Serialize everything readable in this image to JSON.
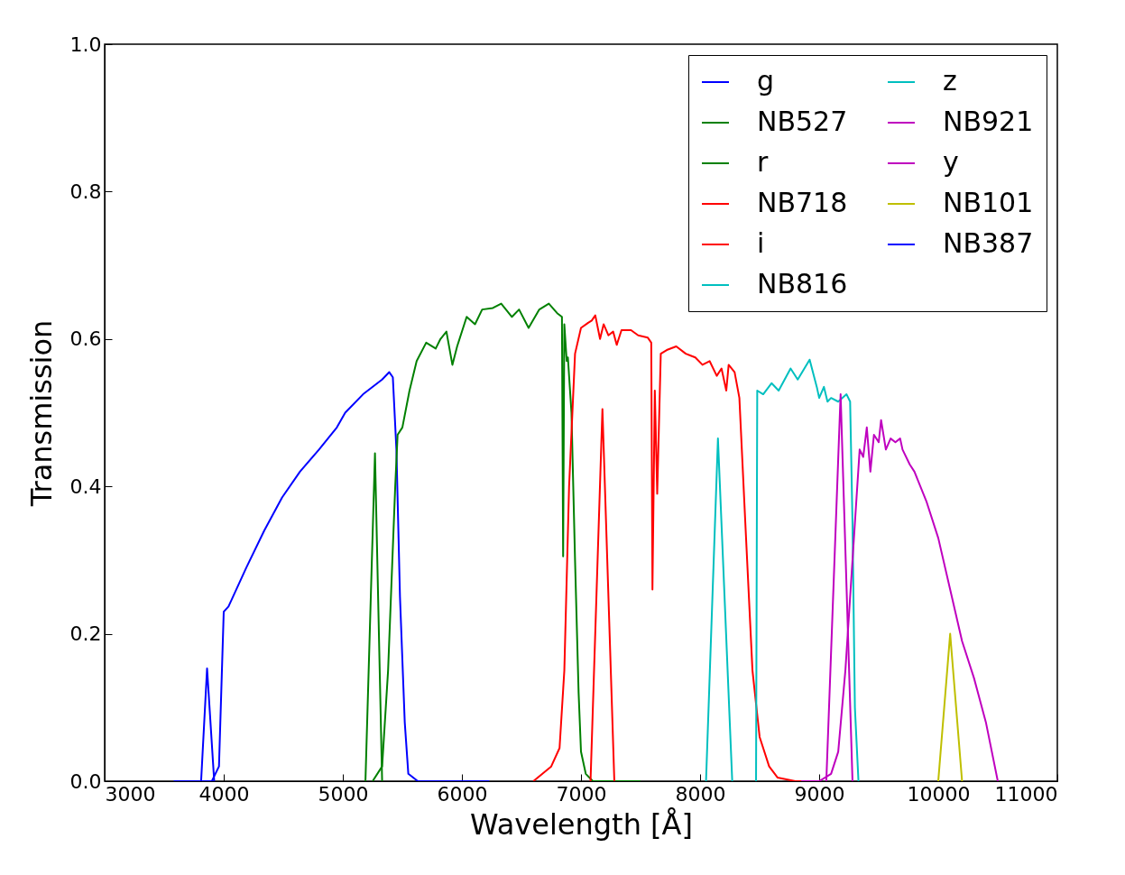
{
  "chart_data": {
    "type": "line",
    "xlabel": "Wavelength [Å]",
    "ylabel": "Transmission",
    "xlim": [
      3000,
      11000
    ],
    "ylim": [
      0,
      1
    ],
    "xticks": [
      3000,
      4000,
      5000,
      6000,
      7000,
      8000,
      9000,
      10000,
      11000
    ],
    "yticks": [
      {
        "value": 0,
        "label": "0.0"
      },
      {
        "value": 0.2,
        "label": "0.2"
      },
      {
        "value": 0.4,
        "label": "0.4"
      },
      {
        "value": 0.6,
        "label": "0.6"
      },
      {
        "value": 0.8,
        "label": "0.8"
      },
      {
        "value": 1,
        "label": "1.0"
      }
    ],
    "grid": false,
    "legend": "top right",
    "marker": "none",
    "line_style": "solid",
    "series": [
      {
        "name": "g",
        "color": "#0000ff",
        "x": [
          3580,
          3900,
          3960,
          4000,
          4040,
          4190,
          4340,
          4490,
          4640,
          4800,
          4950,
          5020,
          5170,
          5330,
          5390,
          5420,
          5450,
          5480,
          5520,
          5550,
          5630,
          6230
        ],
        "values": [
          0,
          0,
          0.02,
          0.23,
          0.237,
          0.29,
          0.34,
          0.385,
          0.42,
          0.45,
          0.48,
          0.5,
          0.525,
          0.545,
          0.555,
          0.548,
          0.45,
          0.25,
          0.08,
          0.01,
          0,
          0
        ]
      },
      {
        "name": "r",
        "color": "#008000",
        "x": [
          5250,
          5330,
          5380,
          5440,
          5460,
          5500,
          5560,
          5620,
          5700,
          5780,
          5820,
          5870,
          5920,
          5960,
          6040,
          6110,
          6170,
          6260,
          6330,
          6420,
          6480,
          6560,
          6650,
          6730,
          6800,
          6840,
          6850,
          6860,
          6880,
          6890,
          6920,
          6950,
          6980,
          7000,
          7040,
          7100,
          7500
        ],
        "values": [
          0,
          0.02,
          0.15,
          0.4,
          0.47,
          0.48,
          0.53,
          0.57,
          0.595,
          0.587,
          0.6,
          0.61,
          0.565,
          0.59,
          0.63,
          0.62,
          0.64,
          0.642,
          0.648,
          0.63,
          0.64,
          0.615,
          0.64,
          0.648,
          0.635,
          0.63,
          0.305,
          0.62,
          0.57,
          0.575,
          0.5,
          0.3,
          0.12,
          0.04,
          0.01,
          0,
          0
        ]
      },
      {
        "name": "i",
        "color": "#ff0000",
        "x": [
          6600,
          6750,
          6820,
          6860,
          6900,
          6950,
          7000,
          7060,
          7090,
          7120,
          7160,
          7190,
          7230,
          7270,
          7300,
          7340,
          7420,
          7480,
          7560,
          7590,
          7600,
          7620,
          7640,
          7670,
          7720,
          7800,
          7880,
          7960,
          8020,
          8080,
          8140,
          8180,
          8220,
          8240,
          8290,
          8330,
          8380,
          8440,
          8500,
          8580,
          8650,
          8800,
          9000
        ],
        "values": [
          0,
          0.02,
          0.045,
          0.15,
          0.4,
          0.58,
          0.615,
          0.622,
          0.625,
          0.632,
          0.6,
          0.62,
          0.605,
          0.61,
          0.592,
          0.612,
          0.612,
          0.605,
          0.602,
          0.595,
          0.26,
          0.53,
          0.39,
          0.58,
          0.585,
          0.59,
          0.58,
          0.575,
          0.565,
          0.57,
          0.55,
          0.56,
          0.53,
          0.565,
          0.555,
          0.52,
          0.35,
          0.15,
          0.06,
          0.02,
          0.005,
          0,
          0
        ]
      },
      {
        "name": "z",
        "color": "#00bfbf",
        "x": [
          8470,
          8480,
          8530,
          8600,
          8660,
          8760,
          8820,
          8920,
          8980,
          9000,
          9040,
          9070,
          9100,
          9160,
          9230,
          9260,
          9280,
          9300,
          9330
        ],
        "values": [
          0,
          0.53,
          0.525,
          0.54,
          0.53,
          0.56,
          0.545,
          0.572,
          0.535,
          0.52,
          0.535,
          0.515,
          0.52,
          0.515,
          0.525,
          0.515,
          0.35,
          0.1,
          0
        ]
      },
      {
        "name": "y",
        "color": "#bf00bf",
        "x": [
          8850,
          9000,
          9100,
          9160,
          9220,
          9260,
          9300,
          9340,
          9370,
          9400,
          9430,
          9460,
          9500,
          9520,
          9560,
          9600,
          9640,
          9680,
          9700,
          9760,
          9800,
          9900,
          10000,
          10100,
          10200,
          10300,
          10400,
          10500
        ],
        "values": [
          0,
          0,
          0.01,
          0.04,
          0.15,
          0.25,
          0.35,
          0.45,
          0.44,
          0.48,
          0.42,
          0.47,
          0.46,
          0.49,
          0.45,
          0.465,
          0.46,
          0.465,
          0.45,
          0.43,
          0.42,
          0.38,
          0.33,
          0.26,
          0.19,
          0.14,
          0.08,
          0
        ]
      },
      {
        "name": "NB387",
        "color": "#0000ff",
        "x": [
          3810,
          3860,
          3920
        ],
        "values": [
          0,
          0.153,
          0
        ]
      },
      {
        "name": "NB527",
        "color": "#008000",
        "x": [
          5190,
          5270,
          5330
        ],
        "values": [
          0,
          0.445,
          0
        ]
      },
      {
        "name": "NB718",
        "color": "#ff0000",
        "x": [
          7080,
          7180,
          7280
        ],
        "values": [
          0,
          0.505,
          0
        ]
      },
      {
        "name": "NB816",
        "color": "#00bfbf",
        "x": [
          8050,
          8150,
          8270
        ],
        "values": [
          0,
          0.465,
          0
        ]
      },
      {
        "name": "NB921",
        "color": "#bf00bf",
        "x": [
          9060,
          9180,
          9280
        ],
        "values": [
          0,
          0.525,
          0
        ]
      },
      {
        "name": "NB101",
        "color": "#bfbf00",
        "x": [
          10000,
          10100,
          10200
        ],
        "values": [
          0,
          0.2,
          0
        ]
      }
    ]
  }
}
